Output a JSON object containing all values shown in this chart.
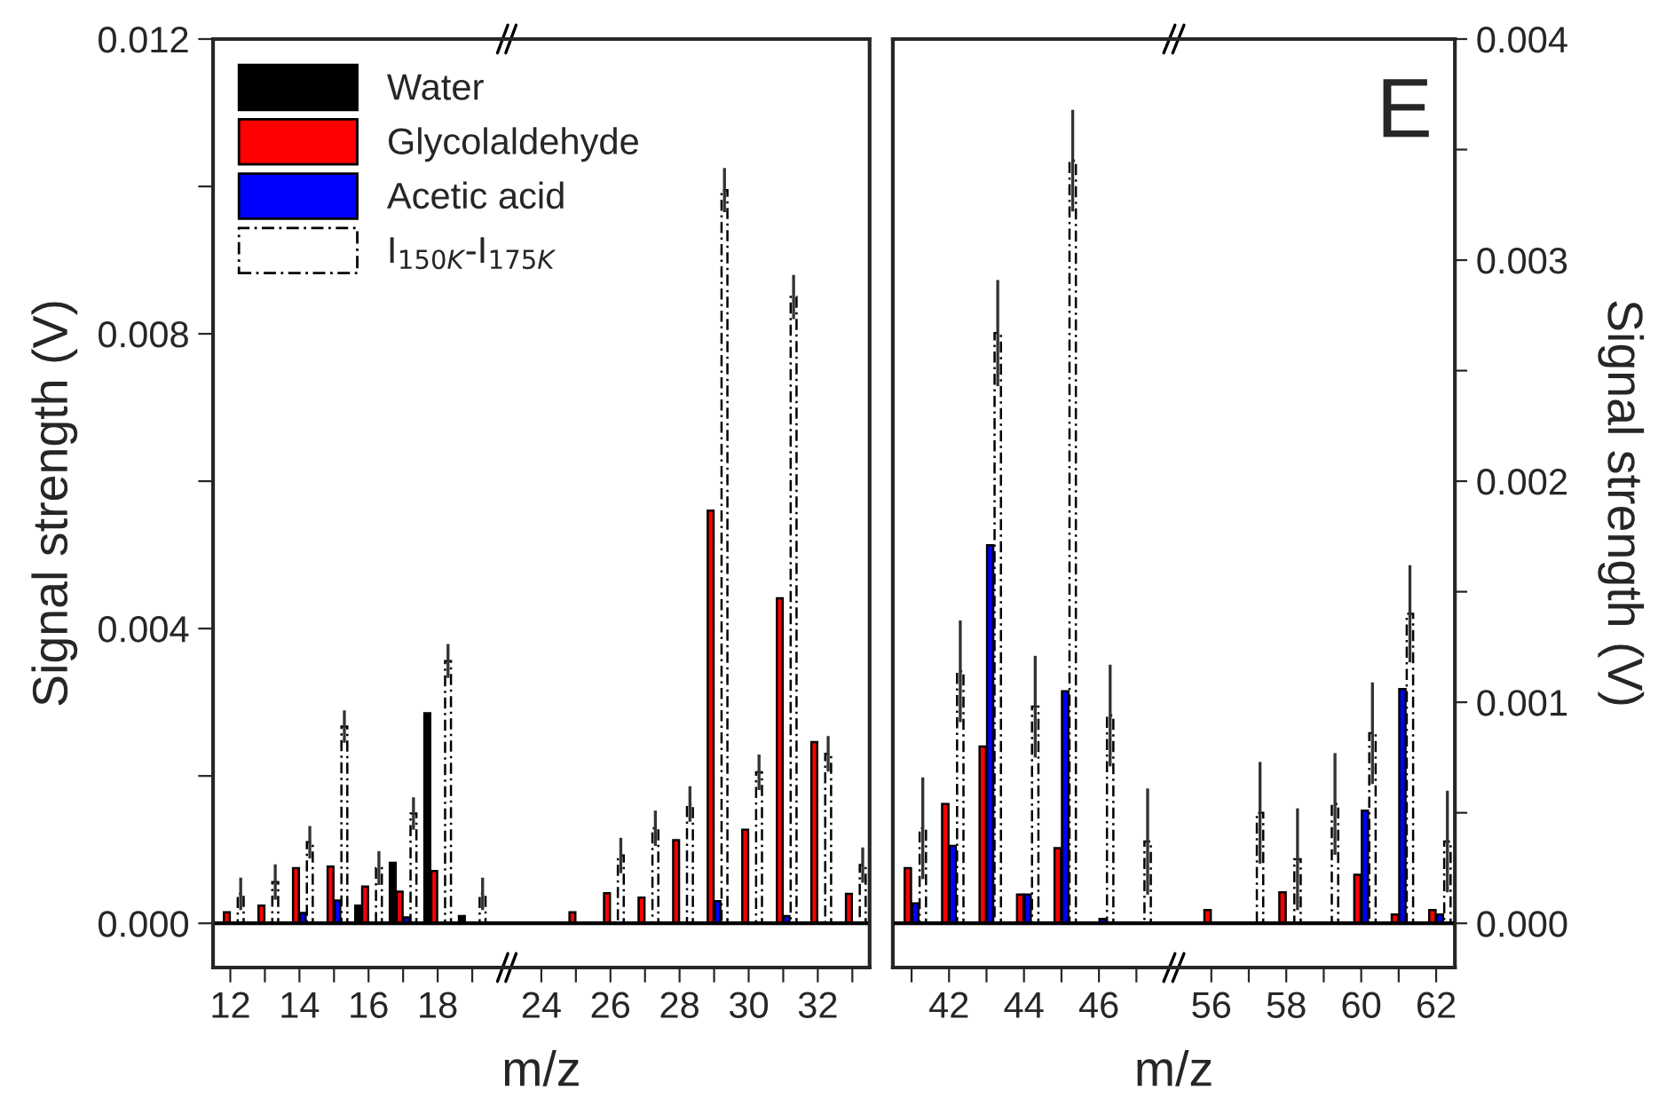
{
  "chart_data": [
    {
      "type": "bar",
      "xlabel": "m/z",
      "ylabel": "Signal strength (V)",
      "categories": [
        "12",
        null,
        "14",
        null,
        "16",
        null,
        "18",
        null,
        null,
        "24",
        null,
        "26",
        null,
        "28",
        null,
        "30",
        null,
        "32",
        null
      ],
      "series": [
        {
          "name": "Water",
          "color": "#000000",
          "values": [
            null,
            null,
            null,
            null,
            0.00024,
            0.00082,
            0.00285,
            0.0001,
            null,
            null,
            null,
            null,
            null,
            null,
            null,
            null,
            null,
            null,
            null
          ]
        },
        {
          "name": "Glycolaldehyde",
          "color": "#ff0000",
          "values": [
            0.00015,
            0.00024,
            0.00075,
            0.00077,
            0.0005,
            0.00043,
            0.00071,
            null,
            null,
            null,
            0.00015,
            0.00041,
            0.00035,
            0.00113,
            0.0056,
            0.00127,
            0.00441,
            0.00246,
            0.0004
          ]
        },
        {
          "name": "Acetic acid",
          "color": "#0000ff",
          "values": [
            null,
            null,
            0.00014,
            0.00031,
            null,
            8e-05,
            null,
            null,
            null,
            null,
            null,
            null,
            null,
            null,
            0.0003,
            null,
            0.0001,
            null,
            null
          ]
        },
        {
          "name": "I$_{150K}$-I$_{175K}$",
          "color": "#ffffff",
          "line_style": "dashed",
          "values": [
            0.0004,
            0.00056,
            0.0011,
            0.00267,
            0.00075,
            0.00149,
            0.00356,
            0.0004,
            null,
            null,
            null,
            0.00092,
            0.00129,
            0.00162,
            0.00995,
            0.00205,
            0.0085,
            0.0023,
            0.00079
          ],
          "errors": [
            0.00022,
            0.00024,
            0.00022,
            0.00022,
            0.00023,
            0.00022,
            0.00023,
            0.00022,
            null,
            null,
            null,
            0.00024,
            0.00024,
            0.00024,
            0.0003,
            0.00024,
            0.0003,
            0.00024,
            0.00024
          ]
        }
      ],
      "ylim": [
        -0.0006,
        0.012
      ],
      "yticks": [
        {
          "value": 0,
          "label": "0.000"
        },
        {
          "value": 0.002,
          "label": null
        },
        {
          "value": 0.004,
          "label": "0.004"
        },
        {
          "value": 0.006,
          "label": null
        },
        {
          "value": 0.008,
          "label": "0.008"
        },
        {
          "value": 0.01,
          "label": null
        },
        {
          "value": 0.012,
          "label": "0.012"
        }
      ],
      "ref_lines": [
        {
          "axis": "y",
          "value": 0
        }
      ],
      "legend": "top left",
      "grid": false
    },
    {
      "type": "bar",
      "xlabel": "m/z",
      "y2label": "Signal strength (V)",
      "annotations": [
        "E"
      ],
      "categories": [
        null,
        "42",
        null,
        "44",
        null,
        "46",
        null,
        null,
        "56",
        null,
        "58",
        null,
        "60",
        null,
        "62"
      ],
      "series": [
        {
          "color": "#ff0000",
          "axis": "y2",
          "values": [
            0.00025,
            0.00054,
            0.0008,
            0.00013,
            0.00034,
            null,
            null,
            null,
            6e-05,
            null,
            0.00014,
            null,
            0.00022,
            4e-05,
            6e-05
          ]
        },
        {
          "color": "#0000ff",
          "axis": "y2",
          "values": [
            9e-05,
            0.00035,
            0.00171,
            0.00013,
            0.00105,
            2e-05,
            null,
            null,
            null,
            null,
            null,
            null,
            0.00051,
            0.00106,
            4e-05
          ]
        },
        {
          "color": "#ffffff",
          "axis": "y2",
          "line_style": "dashed",
          "values": [
            0.00043,
            0.00114,
            0.00267,
            0.00098,
            0.00345,
            0.00094,
            0.00037,
            null,
            null,
            0.0005,
            0.00029,
            0.00054,
            0.00086,
            0.0014,
            0.00037
          ],
          "errors": [
            0.00023,
            0.00023,
            0.00024,
            0.00023,
            0.00023,
            0.00023,
            0.00024,
            null,
            null,
            0.00023,
            0.00023,
            0.00023,
            0.00023,
            0.00022,
            0.00023
          ]
        }
      ],
      "y2lim": [
        -0.0002,
        0.004
      ],
      "y2ticks": [
        {
          "value": 0,
          "label": "0.000"
        },
        {
          "value": 0.0005,
          "label": null
        },
        {
          "value": 0.001,
          "label": "0.001"
        },
        {
          "value": 0.0015,
          "label": null
        },
        {
          "value": 0.002,
          "label": "0.002"
        },
        {
          "value": 0.0025,
          "label": null
        },
        {
          "value": 0.003,
          "label": "0.003"
        },
        {
          "value": 0.0035,
          "label": null
        },
        {
          "value": 0.004,
          "label": "0.004"
        }
      ],
      "ref_lines": [
        {
          "axis": "y2",
          "value": 0
        }
      ],
      "legend": false,
      "grid": false
    }
  ]
}
